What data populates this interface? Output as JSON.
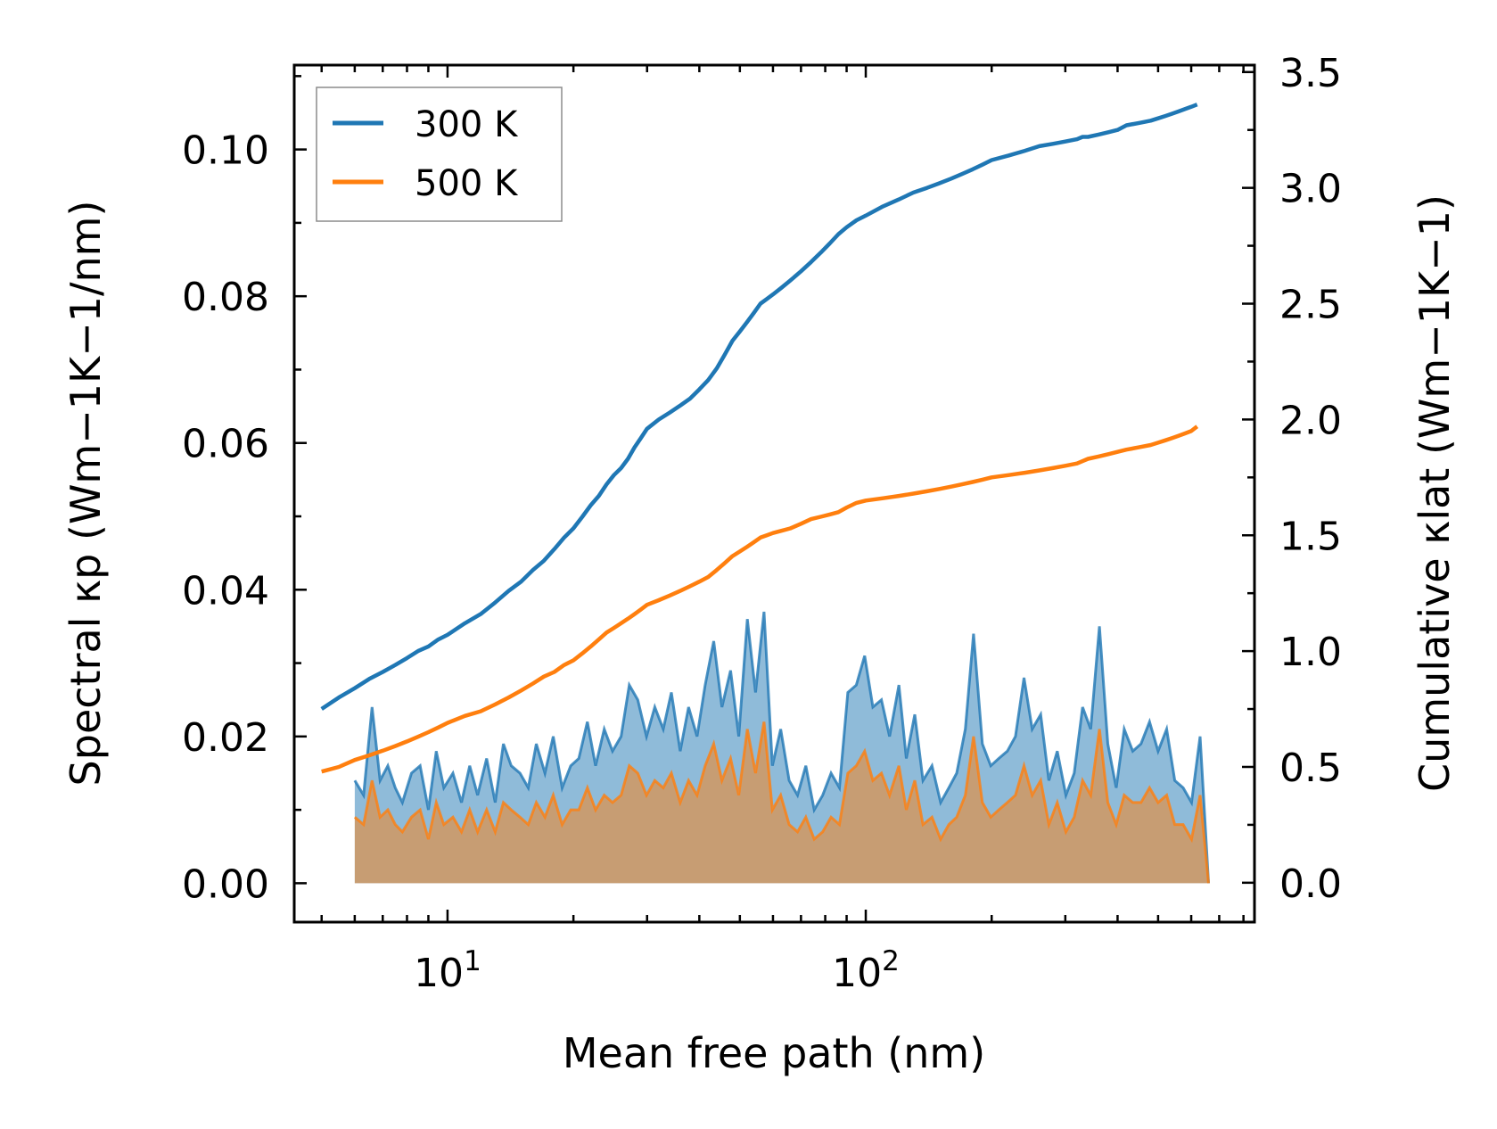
{
  "chart_data": {
    "type": "line",
    "x_scale": "log",
    "xlabel": "Mean free path (nm)",
    "ylabel_left": "Spectral κp (Wm−1K−1/nm)",
    "ylabel_right": "Cumulative κlat (Wm−1K−1)",
    "xlim": [
      4.3,
      850
    ],
    "ylim_left": [
      -0.0053,
      0.1115
    ],
    "ylim_right": [
      -0.17,
      3.53
    ],
    "x_ticks": [
      {
        "value": 10,
        "base": "10",
        "exp": "1"
      },
      {
        "value": 100,
        "base": "10",
        "exp": "2"
      }
    ],
    "y_ticks_left": [
      "0.00",
      "0.02",
      "0.04",
      "0.06",
      "0.08",
      "0.10"
    ],
    "y_ticks_right": [
      "0.0",
      "0.5",
      "1.0",
      "1.5",
      "2.0",
      "2.5",
      "3.0",
      "3.5"
    ],
    "legend": {
      "position": "top-left",
      "entries": [
        {
          "label": "300 K",
          "color": "#1f77b4"
        },
        {
          "label": "500 K",
          "color": "#ff7f0e"
        }
      ]
    },
    "series": [
      {
        "name": "300 K",
        "kind": "spectral",
        "axis": "left",
        "color": "#1f77b4",
        "x": [
          6.0,
          6.3,
          6.6,
          6.9,
          7.2,
          7.5,
          7.8,
          8.2,
          8.6,
          9.0,
          9.4,
          9.8,
          10.3,
          10.8,
          11.3,
          11.8,
          12.4,
          13.0,
          13.6,
          14.2,
          14.9,
          15.6,
          16.3,
          17.1,
          17.9,
          18.8,
          19.7,
          20.6,
          21.6,
          22.6,
          23.7,
          24.8,
          26.0,
          27.2,
          28.5,
          29.9,
          31.3,
          32.8,
          34.3,
          36.0,
          37.7,
          39.5,
          41.3,
          43.3,
          45.3,
          47.5,
          49.7,
          52.1,
          54.5,
          57.1,
          59.8,
          62.6,
          65.6,
          68.7,
          71.9,
          75.3,
          78.9,
          82.6,
          86.5,
          90.6,
          94.9,
          99.4,
          104,
          109,
          114,
          120,
          125,
          131,
          137,
          144,
          151,
          158,
          165,
          173,
          181,
          190,
          199,
          208,
          218,
          228,
          239,
          250,
          262,
          274,
          287,
          301,
          315,
          330,
          345,
          362,
          379,
          397,
          415,
          435,
          455,
          477,
          500,
          524,
          548,
          574,
          601,
          630,
          660
        ],
        "y": [
          0.014,
          0.012,
          0.024,
          0.014,
          0.016,
          0.013,
          0.011,
          0.015,
          0.016,
          0.01,
          0.018,
          0.013,
          0.015,
          0.011,
          0.016,
          0.012,
          0.017,
          0.011,
          0.019,
          0.016,
          0.015,
          0.013,
          0.019,
          0.015,
          0.02,
          0.013,
          0.016,
          0.017,
          0.022,
          0.016,
          0.021,
          0.018,
          0.02,
          0.027,
          0.025,
          0.02,
          0.024,
          0.021,
          0.026,
          0.018,
          0.024,
          0.02,
          0.027,
          0.033,
          0.024,
          0.029,
          0.02,
          0.036,
          0.026,
          0.037,
          0.016,
          0.021,
          0.014,
          0.012,
          0.016,
          0.01,
          0.012,
          0.015,
          0.013,
          0.026,
          0.027,
          0.031,
          0.024,
          0.025,
          0.02,
          0.027,
          0.017,
          0.023,
          0.014,
          0.016,
          0.011,
          0.013,
          0.015,
          0.021,
          0.034,
          0.019,
          0.016,
          0.017,
          0.018,
          0.02,
          0.028,
          0.021,
          0.023,
          0.014,
          0.018,
          0.012,
          0.015,
          0.024,
          0.021,
          0.035,
          0.019,
          0.013,
          0.021,
          0.018,
          0.019,
          0.022,
          0.018,
          0.021,
          0.014,
          0.013,
          0.011,
          0.02,
          0.0
        ]
      },
      {
        "name": "300 K",
        "kind": "cumulative",
        "axis": "right",
        "color": "#1f77b4",
        "x": [
          5.0,
          5.5,
          6.0,
          6.5,
          7.0,
          7.5,
          8.0,
          8.5,
          9.0,
          9.5,
          10,
          11,
          12,
          13,
          14,
          15,
          16,
          17,
          18,
          19,
          20,
          21,
          22,
          23,
          24,
          25,
          26,
          27,
          28,
          29,
          30,
          32,
          34,
          36,
          38,
          40,
          42,
          44,
          46,
          48,
          50,
          52,
          54,
          56,
          58,
          60,
          63,
          66,
          70,
          74,
          78,
          82,
          86,
          90,
          95,
          100,
          110,
          120,
          130,
          140,
          150,
          160,
          170,
          180,
          190,
          200,
          220,
          240,
          260,
          280,
          300,
          320,
          330,
          340,
          360,
          380,
          400,
          420,
          450,
          480,
          500,
          520,
          540,
          560,
          580,
          600,
          620
        ],
        "y": [
          0.75,
          0.8,
          0.84,
          0.88,
          0.91,
          0.94,
          0.97,
          1.0,
          1.02,
          1.05,
          1.07,
          1.12,
          1.16,
          1.21,
          1.26,
          1.3,
          1.35,
          1.39,
          1.44,
          1.49,
          1.53,
          1.58,
          1.63,
          1.67,
          1.72,
          1.76,
          1.79,
          1.83,
          1.88,
          1.92,
          1.96,
          2.0,
          2.03,
          2.06,
          2.09,
          2.13,
          2.17,
          2.22,
          2.28,
          2.34,
          2.38,
          2.42,
          2.46,
          2.5,
          2.52,
          2.54,
          2.57,
          2.6,
          2.64,
          2.68,
          2.72,
          2.76,
          2.8,
          2.83,
          2.86,
          2.88,
          2.92,
          2.95,
          2.98,
          3.0,
          3.02,
          3.04,
          3.06,
          3.08,
          3.1,
          3.12,
          3.14,
          3.16,
          3.18,
          3.19,
          3.2,
          3.21,
          3.22,
          3.22,
          3.23,
          3.24,
          3.25,
          3.27,
          3.28,
          3.29,
          3.3,
          3.31,
          3.32,
          3.33,
          3.34,
          3.35,
          3.36
        ]
      },
      {
        "name": "500 K",
        "kind": "spectral",
        "axis": "left",
        "color": "#ff7f0e",
        "x": [
          6.0,
          6.3,
          6.6,
          6.9,
          7.2,
          7.5,
          7.8,
          8.2,
          8.6,
          9.0,
          9.4,
          9.8,
          10.3,
          10.8,
          11.3,
          11.8,
          12.4,
          13.0,
          13.6,
          14.2,
          14.9,
          15.6,
          16.3,
          17.1,
          17.9,
          18.8,
          19.7,
          20.6,
          21.6,
          22.6,
          23.7,
          24.8,
          26.0,
          27.2,
          28.5,
          29.9,
          31.3,
          32.8,
          34.3,
          36.0,
          37.7,
          39.5,
          41.3,
          43.3,
          45.3,
          47.5,
          49.7,
          52.1,
          54.5,
          57.1,
          59.8,
          62.6,
          65.6,
          68.7,
          71.9,
          75.3,
          78.9,
          82.6,
          86.5,
          90.6,
          94.9,
          99.4,
          104,
          109,
          114,
          120,
          125,
          131,
          137,
          144,
          151,
          158,
          165,
          173,
          181,
          190,
          199,
          208,
          218,
          228,
          239,
          250,
          262,
          274,
          287,
          301,
          315,
          330,
          345,
          362,
          379,
          397,
          415,
          435,
          455,
          477,
          500,
          524,
          548,
          574,
          601,
          630,
          660
        ],
        "y": [
          0.009,
          0.008,
          0.014,
          0.009,
          0.01,
          0.008,
          0.007,
          0.009,
          0.01,
          0.006,
          0.011,
          0.008,
          0.009,
          0.007,
          0.01,
          0.007,
          0.01,
          0.007,
          0.011,
          0.01,
          0.009,
          0.008,
          0.011,
          0.009,
          0.012,
          0.008,
          0.01,
          0.01,
          0.013,
          0.01,
          0.012,
          0.011,
          0.012,
          0.016,
          0.015,
          0.012,
          0.014,
          0.013,
          0.015,
          0.011,
          0.014,
          0.012,
          0.016,
          0.019,
          0.014,
          0.017,
          0.012,
          0.021,
          0.015,
          0.022,
          0.01,
          0.012,
          0.008,
          0.007,
          0.009,
          0.006,
          0.007,
          0.009,
          0.008,
          0.015,
          0.016,
          0.018,
          0.014,
          0.015,
          0.012,
          0.016,
          0.01,
          0.014,
          0.008,
          0.009,
          0.006,
          0.008,
          0.009,
          0.012,
          0.02,
          0.011,
          0.009,
          0.01,
          0.011,
          0.012,
          0.016,
          0.012,
          0.014,
          0.008,
          0.011,
          0.007,
          0.009,
          0.014,
          0.012,
          0.021,
          0.011,
          0.008,
          0.012,
          0.011,
          0.011,
          0.013,
          0.011,
          0.012,
          0.008,
          0.008,
          0.006,
          0.012,
          0.0
        ]
      },
      {
        "name": "500 K",
        "kind": "cumulative",
        "axis": "right",
        "color": "#ff7f0e",
        "x": [
          5.0,
          5.5,
          6.0,
          6.5,
          7.0,
          7.5,
          8.0,
          8.5,
          9.0,
          9.5,
          10,
          11,
          12,
          13,
          14,
          15,
          16,
          17,
          18,
          19,
          20,
          21,
          22,
          23,
          24,
          25,
          26,
          27,
          28,
          29,
          30,
          32,
          34,
          36,
          38,
          40,
          42,
          44,
          46,
          48,
          50,
          52,
          54,
          56,
          58,
          60,
          63,
          66,
          70,
          74,
          78,
          82,
          86,
          90,
          95,
          100,
          110,
          120,
          130,
          140,
          150,
          160,
          170,
          180,
          190,
          200,
          220,
          240,
          260,
          280,
          300,
          320,
          330,
          340,
          360,
          380,
          400,
          420,
          450,
          480,
          500,
          520,
          540,
          560,
          580,
          600,
          620
        ],
        "y": [
          0.48,
          0.5,
          0.53,
          0.55,
          0.57,
          0.59,
          0.61,
          0.63,
          0.65,
          0.67,
          0.69,
          0.72,
          0.74,
          0.77,
          0.8,
          0.83,
          0.86,
          0.89,
          0.91,
          0.94,
          0.96,
          0.99,
          1.02,
          1.05,
          1.08,
          1.1,
          1.12,
          1.14,
          1.16,
          1.18,
          1.2,
          1.22,
          1.24,
          1.26,
          1.28,
          1.3,
          1.32,
          1.35,
          1.38,
          1.41,
          1.43,
          1.45,
          1.47,
          1.49,
          1.5,
          1.51,
          1.52,
          1.53,
          1.55,
          1.57,
          1.58,
          1.59,
          1.6,
          1.62,
          1.64,
          1.65,
          1.66,
          1.67,
          1.68,
          1.69,
          1.7,
          1.71,
          1.72,
          1.73,
          1.74,
          1.75,
          1.76,
          1.77,
          1.78,
          1.79,
          1.8,
          1.81,
          1.82,
          1.83,
          1.84,
          1.85,
          1.86,
          1.87,
          1.88,
          1.89,
          1.9,
          1.91,
          1.92,
          1.93,
          1.94,
          1.95,
          1.97
        ]
      }
    ]
  }
}
